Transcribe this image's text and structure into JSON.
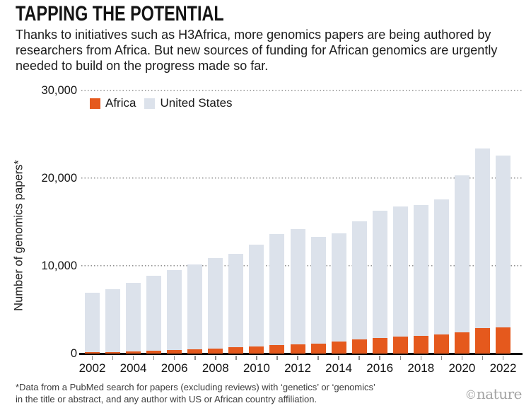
{
  "header": {
    "title": "TAPPING THE POTENTIAL",
    "subtitle": "Thanks to initiatives such as H3Africa, more genomics papers are being authored by researchers from Africa. But new sources of funding for African genomics are urgently needed to build on the progress made so far."
  },
  "legend": [
    {
      "label": "Africa",
      "color": "#E5591D"
    },
    {
      "label": "United States",
      "color": "#DCE2EB"
    }
  ],
  "chart_data": {
    "type": "bar",
    "title": "TAPPING THE POTENTIAL",
    "xlabel": "",
    "ylabel": "Number of genomics papers*",
    "ylim": [
      0,
      30000
    ],
    "yticks": [
      0,
      10000,
      20000,
      30000
    ],
    "ytick_labels": [
      "0",
      "10,000",
      "20,000",
      "30,000"
    ],
    "grid": "horizontal dotted",
    "grid_color": "#8f8f8f",
    "legend_position": "top-left",
    "bar_style": "overlapping (Africa drawn in front of United States)",
    "categories": [
      2002,
      2003,
      2004,
      2005,
      2006,
      2007,
      2008,
      2009,
      2010,
      2011,
      2012,
      2013,
      2014,
      2015,
      2016,
      2017,
      2018,
      2019,
      2020,
      2021,
      2022
    ],
    "x_labeled_years": [
      2002,
      2004,
      2006,
      2008,
      2010,
      2012,
      2014,
      2016,
      2018,
      2020,
      2022
    ],
    "series": [
      {
        "name": "Africa",
        "color": "#E5591D",
        "values": [
          150,
          200,
          250,
          300,
          400,
          500,
          600,
          700,
          800,
          950,
          1050,
          1150,
          1400,
          1600,
          1800,
          1900,
          2000,
          2150,
          2450,
          2880,
          3000
        ]
      },
      {
        "name": "United States",
        "color": "#DCE2EB",
        "values": [
          6900,
          7300,
          8100,
          8900,
          9500,
          10200,
          10900,
          11400,
          12400,
          13600,
          14200,
          13300,
          13700,
          15100,
          16300,
          16800,
          16900,
          17600,
          20300,
          23400,
          22600
        ]
      }
    ]
  },
  "footnote": {
    "lines": [
      "*Data from a PubMed search for papers (excluding reviews) with ‘genetics’ or ‘genomics’",
      "in the title or abstract, and any author with US or African country affiliation."
    ]
  },
  "credit": {
    "symbol": "©",
    "name": "nature"
  }
}
